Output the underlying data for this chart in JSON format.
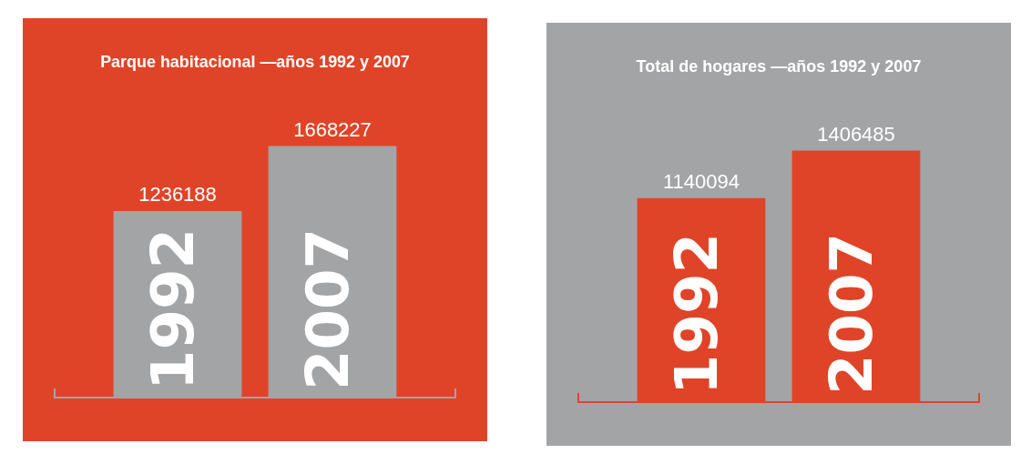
{
  "chart_data": [
    {
      "type": "bar",
      "title": "Parque habitacional —años 1992 y 2007",
      "categories": [
        "1992",
        "2007"
      ],
      "values": [
        1236188,
        1668227
      ],
      "colors": [
        "#a3a4a6",
        "#a3a4a6"
      ],
      "data_labels": true,
      "tick_labels": "x"
    },
    {
      "type": "bar",
      "title": "Total de hogares —años 1992 y 2007",
      "categories": [
        "1992",
        "2007"
      ],
      "values": [
        1140094,
        1406485
      ],
      "colors": [
        "#e04428",
        "#e04428"
      ],
      "data_labels": true,
      "tick_labels": "x"
    }
  ]
}
